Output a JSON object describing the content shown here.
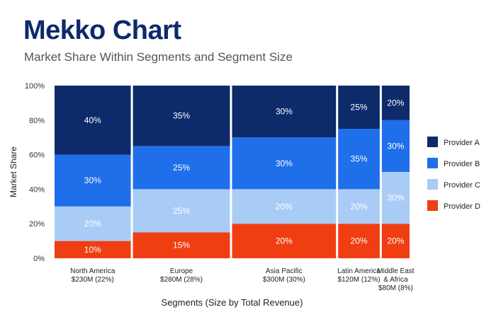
{
  "chart_data": {
    "type": "mekko",
    "title": "Mekko Chart",
    "subtitle": "Market Share Within Segments and Segment Size",
    "xlabel": "Segments (Size by Total Revenue)",
    "ylabel": "Market Share",
    "ylim": [
      0,
      100
    ],
    "y_ticks": [
      "0%",
      "20%",
      "40%",
      "60%",
      "80%",
      "100%"
    ],
    "categories": [
      {
        "name": "North America",
        "size": "$230M (22%)",
        "width_share": 22
      },
      {
        "name": "Europe",
        "size": "$280M (28%)",
        "width_share": 28
      },
      {
        "name": "Asia Pacific",
        "size": "$300M (30%)",
        "width_share": 30
      },
      {
        "name": "Latin America",
        "size": "$120M (12%)",
        "width_share": 12
      },
      {
        "name": "Middle East & Africa",
        "name_lines": [
          "Middle East",
          "& Africa"
        ],
        "size": "$80M (8%)",
        "width_share": 8
      }
    ],
    "series": [
      {
        "name": "Provider D",
        "color": "#ef3e12",
        "values": [
          10,
          15,
          20,
          20,
          20
        ]
      },
      {
        "name": "Provider C",
        "color": "#a9ccf7",
        "values": [
          20,
          25,
          20,
          20,
          30
        ]
      },
      {
        "name": "Provider B",
        "color": "#1f6fea",
        "values": [
          30,
          25,
          30,
          35,
          30
        ]
      },
      {
        "name": "Provider A",
        "color": "#0d2a6b",
        "values": [
          40,
          35,
          30,
          25,
          20
        ]
      }
    ],
    "legend": {
      "placement": "right",
      "order": [
        "Provider A",
        "Provider B",
        "Provider C",
        "Provider D"
      ]
    },
    "value_label_color": "#ffffff",
    "label_suffix": "%"
  }
}
